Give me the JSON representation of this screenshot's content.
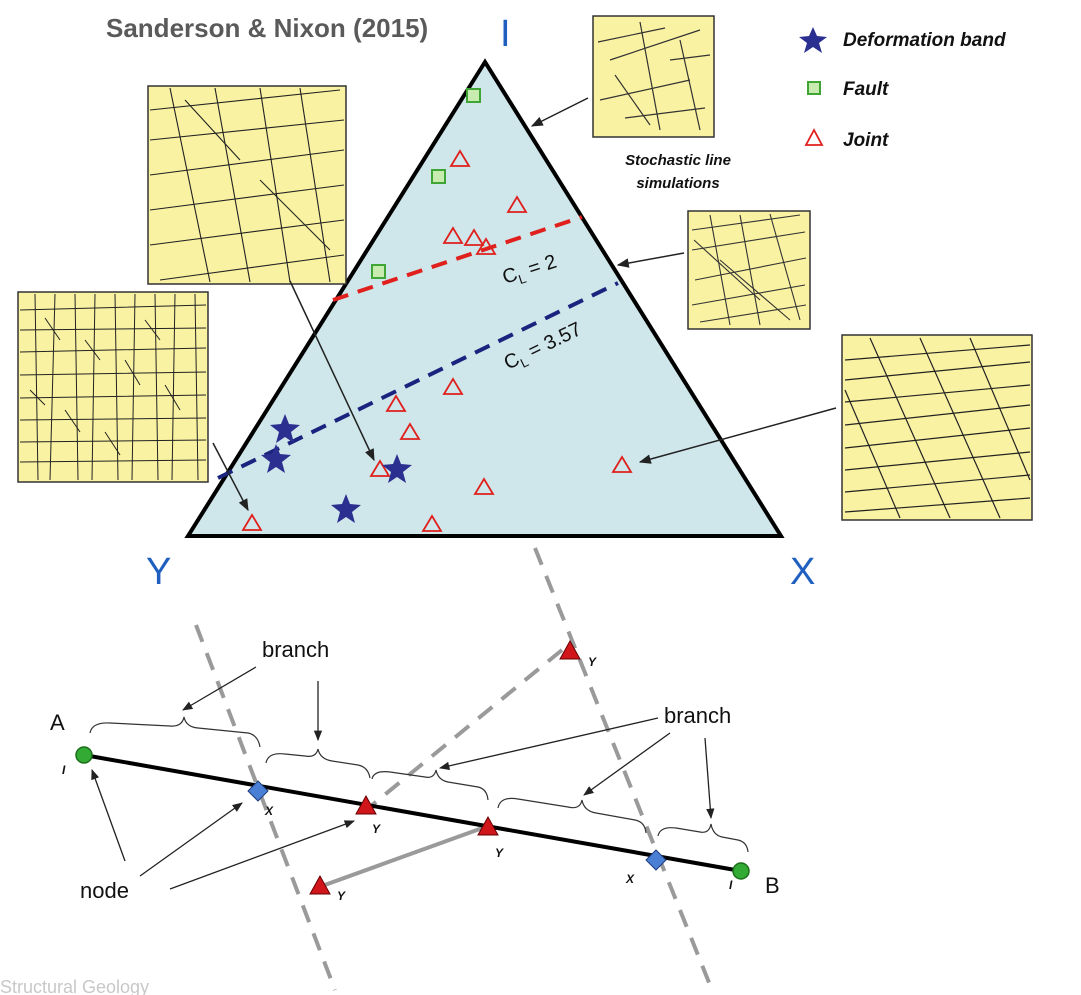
{
  "title": "Sanderson & Nixon (2015)",
  "vertices": {
    "top": "I",
    "left": "Y",
    "right": "X"
  },
  "legend": [
    {
      "label": "Deformation band",
      "icon": "blue-star-icon"
    },
    {
      "label": "Fault",
      "icon": "green-square-icon"
    },
    {
      "label": "Joint",
      "icon": "red-triangle-icon"
    }
  ],
  "stochastic_caption": [
    "Stochastic line",
    "simulations"
  ],
  "contours": [
    {
      "label_main": "C",
      "label_sub": "L",
      "label_value": " = 2",
      "color": "#e0201c"
    },
    {
      "label_main": "C",
      "label_sub": "L",
      "label_value": " = 3.57",
      "color": "#1a237e"
    }
  ],
  "diagram_labels": {
    "branch_left": "branch",
    "branch_right": "branch",
    "node": "node",
    "end_a": "A",
    "end_b": "B",
    "node_types": [
      "I",
      "X",
      "Y",
      "Y",
      "X",
      "I",
      "Y",
      "Y"
    ]
  },
  "footer": "Structural Geology",
  "colors": {
    "triangle_fill": "#cfe6ea",
    "panel_fill": "#f9f2a2",
    "star": "#2b2f8f",
    "fault": "#3fa535",
    "joint": "#e0201c",
    "node_green": "#33aa33",
    "node_blue": "#4a7fd6",
    "node_red": "#d0161b"
  }
}
